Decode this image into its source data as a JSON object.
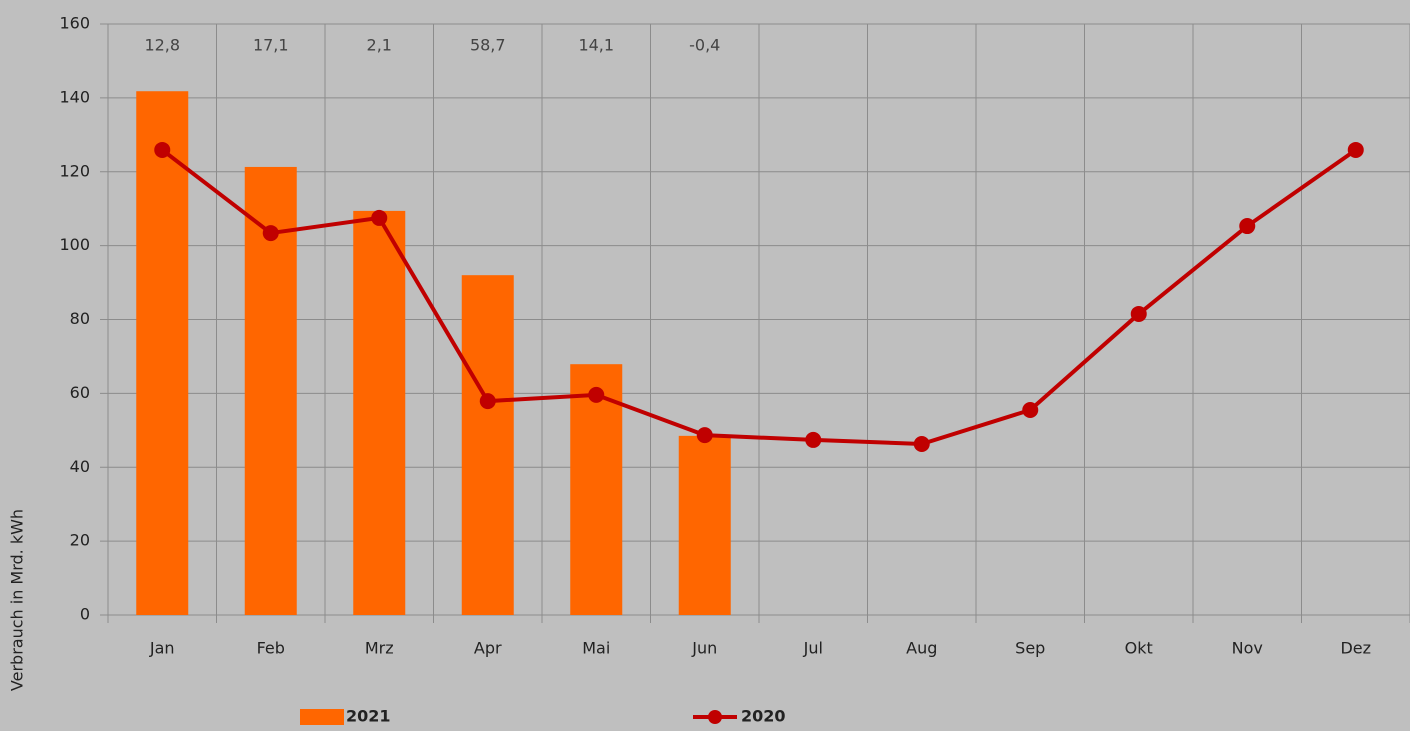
{
  "chart_data": {
    "type": "combo",
    "y_label": "Verbrauch in Mrd. kWh",
    "categories": [
      "Jan",
      "Feb",
      "Mrz",
      "Apr",
      "Mai",
      "Jun",
      "Jul",
      "Aug",
      "Sep",
      "Okt",
      "Nov",
      "Dez"
    ],
    "series": [
      {
        "name": "2021",
        "type": "bar",
        "color": "#ff6600",
        "values": [
          141.8,
          121.3,
          109.4,
          92.0,
          67.9,
          48.5,
          null,
          null,
          null,
          null,
          null,
          null
        ]
      },
      {
        "name": "2020",
        "type": "line",
        "color": "#c00000",
        "values": [
          125.9,
          103.4,
          107.5,
          57.9,
          59.6,
          48.7,
          47.4,
          46.3,
          55.5,
          81.5,
          105.3,
          125.9
        ]
      }
    ],
    "annotations": [
      "12,8",
      "17,1",
      "2,1",
      "58,7",
      "14,1",
      "-0,4"
    ],
    "ylim": [
      0,
      160
    ],
    "yticks": [
      0,
      20,
      40,
      60,
      80,
      100,
      120,
      140,
      160
    ],
    "grid": true
  }
}
